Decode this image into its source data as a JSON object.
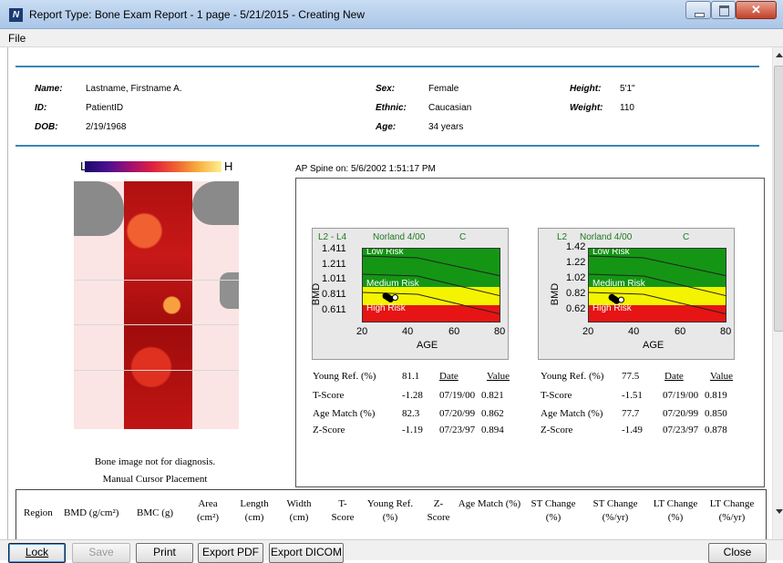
{
  "window": {
    "title": "Report Type: Bone Exam Report - 1 page - 5/21/2015 - Creating New",
    "icon": "app-logo-icon",
    "close_glyph": "✕"
  },
  "menu": {
    "file": "File"
  },
  "patient": {
    "name_label": "Name:",
    "name": "Lastname, Firstname A.",
    "id_label": "ID:",
    "id": "PatientID",
    "dob_label": "DOB:",
    "dob": "2/19/1968",
    "sex_label": "Sex:",
    "sex": "Female",
    "ethnic_label": "Ethnic:",
    "ethnic": "Caucasian",
    "age_label": "Age:",
    "age": "34 years",
    "height_label": "Height:",
    "height": "5'1\"",
    "weight_label": "Weight:",
    "weight": "110"
  },
  "image_panel": {
    "scale_low": "L",
    "scale_high": "H",
    "note1": "Bone image not for diagnosis.",
    "note2": "Manual Cursor Placement"
  },
  "scan": {
    "title": "AP Spine on: 5/6/2002 1:51:17 PM"
  },
  "charts": [
    {
      "region": "L2 - L4",
      "reference": "Norland 4/00",
      "code": "C",
      "ytick_labels": [
        "1.411",
        "1.211",
        "1.011",
        "0.811",
        "0.611"
      ],
      "xtick_labels": [
        "20",
        "40",
        "60",
        "80"
      ],
      "ylabel": "BMD",
      "xlabel": "AGE",
      "zones": {
        "low": "Low Risk",
        "medium": "Medium Risk",
        "high": "High Risk"
      },
      "stats": {
        "young_ref_label": "Young Ref. (%)",
        "young_ref": "81.1",
        "date_header": "Date",
        "value_header": "Value",
        "tscore_label": "T-Score",
        "tscore": "-1.28",
        "agematch_label": "Age Match (%)",
        "agematch": "82.3",
        "zscore_label": "Z-Score",
        "zscore": "-1.19",
        "history": [
          {
            "date": "07/19/00",
            "value": "0.821"
          },
          {
            "date": "07/20/99",
            "value": "0.862"
          },
          {
            "date": "07/23/97",
            "value": "0.894"
          }
        ]
      }
    },
    {
      "region": "L2",
      "reference": "Norland 4/00",
      "code": "C",
      "ytick_labels": [
        "1.42",
        "1.22",
        "1.02",
        "0.82",
        "0.62"
      ],
      "xtick_labels": [
        "20",
        "40",
        "60",
        "80"
      ],
      "ylabel": "BMD",
      "xlabel": "AGE",
      "zones": {
        "low": "Low Risk",
        "medium": "Medium Risk",
        "high": "High Risk"
      },
      "stats": {
        "young_ref_label": "Young Ref. (%)",
        "young_ref": "77.5",
        "date_header": "Date",
        "value_header": "Value",
        "tscore_label": "T-Score",
        "tscore": "-1.51",
        "agematch_label": "Age Match (%)",
        "agematch": "77.7",
        "zscore_label": "Z-Score",
        "zscore": "-1.49",
        "history": [
          {
            "date": "07/19/00",
            "value": "0.819"
          },
          {
            "date": "07/20/99",
            "value": "0.850"
          },
          {
            "date": "07/23/97",
            "value": "0.878"
          }
        ]
      }
    }
  ],
  "chart_data": [
    {
      "type": "scatter",
      "title": "L2 - L4",
      "xlabel": "AGE",
      "ylabel": "BMD",
      "xlim": [
        20,
        80
      ],
      "ylim": [
        0.511,
        1.461
      ],
      "points": [
        {
          "x": 30,
          "y": 0.86
        },
        {
          "x": 31,
          "y": 0.84
        },
        {
          "x": 32,
          "y": 0.82
        },
        {
          "x": 34,
          "y": 0.84
        }
      ]
    },
    {
      "type": "scatter",
      "title": "L2",
      "xlabel": "AGE",
      "ylabel": "BMD",
      "xlim": [
        20,
        80
      ],
      "ylim": [
        0.52,
        1.47
      ],
      "points": [
        {
          "x": 30,
          "y": 0.85
        },
        {
          "x": 31,
          "y": 0.83
        },
        {
          "x": 32,
          "y": 0.81
        },
        {
          "x": 34,
          "y": 0.82
        }
      ]
    }
  ],
  "table": {
    "headers": [
      "Region",
      "BMD (g/cm²)",
      "BMC (g)",
      "Area (cm²)",
      "Length (cm)",
      "Width (cm)",
      "T-Score",
      "Young Ref. (%)",
      "Z-Score",
      "Age Match (%)",
      "ST Change (%)",
      "ST Change (%/yr)",
      "LT Change (%)",
      "LT Change (%/yr)"
    ]
  },
  "buttons": {
    "lock": "Lock",
    "save": "Save",
    "print": "Print",
    "export_pdf": "Export PDF",
    "export_dicom": "Export DICOM",
    "close": "Close"
  },
  "colors": {
    "accent_line": "#3a85b5",
    "low_risk": "#149614",
    "medium_risk": "#f4f400",
    "high_risk": "#e61414",
    "chart_header": "#1f7a1f"
  }
}
